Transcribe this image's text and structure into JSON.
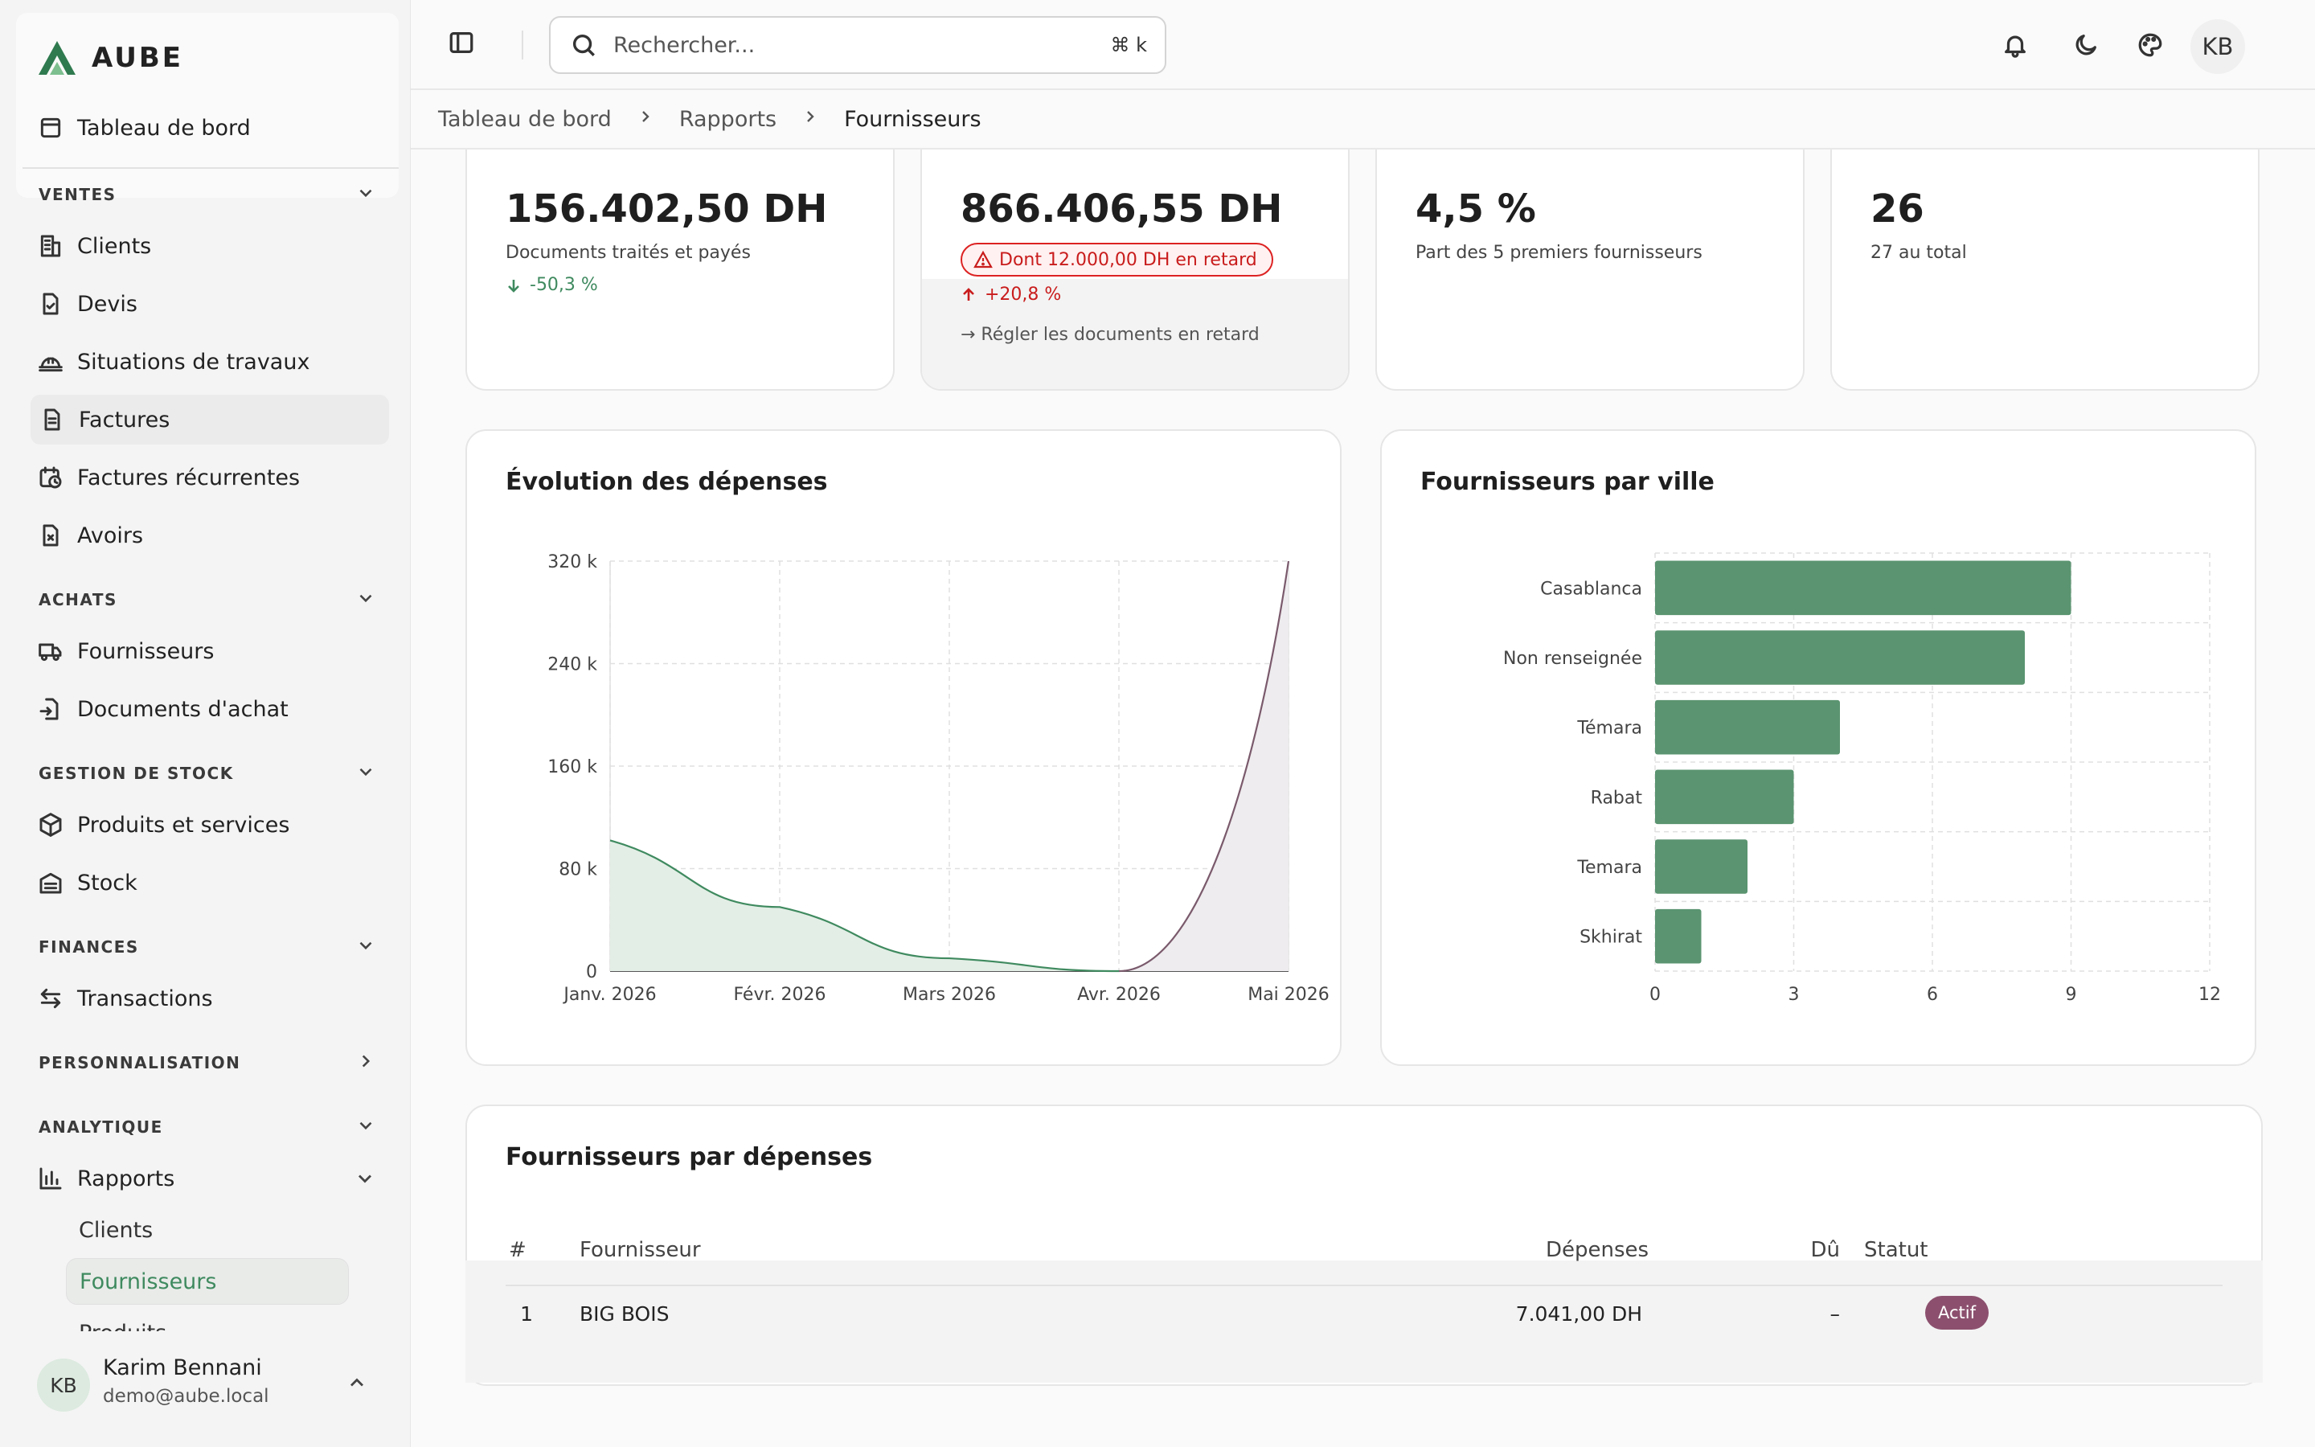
{
  "brand": {
    "name": "AUBE",
    "color": "#3f8a5f"
  },
  "sidebar": {
    "dashboard": "Tableau de bord",
    "sections": {
      "ventes": "VENTES",
      "achats": "ACHATS",
      "stock": "GESTION DE STOCK",
      "finances": "FINANCES",
      "perso": "PERSONNALISATION",
      "analytique": "ANALYTIQUE"
    },
    "items": {
      "clients": "Clients",
      "devis": "Devis",
      "situations": "Situations de travaux",
      "factures": "Factures",
      "factures_rec": "Factures récurrentes",
      "avoirs": "Avoirs",
      "fournisseurs": "Fournisseurs",
      "docs_achat": "Documents d'achat",
      "produits": "Produits et services",
      "stock": "Stock",
      "transactions": "Transactions",
      "rapports": "Rapports"
    },
    "rapports_sub": [
      "Clients",
      "Fournisseurs",
      "Produits"
    ],
    "user": {
      "initials": "KB",
      "name": "Karim Bennani",
      "email": "demo@aube.local"
    }
  },
  "topbar": {
    "search_placeholder": "Rechercher...",
    "search_shortcut": "⌘ k",
    "avatar_initials": "KB"
  },
  "breadcrumb": [
    "Tableau de bord",
    "Rapports",
    "Fournisseurs"
  ],
  "kpis": [
    {
      "value": "156.402,50 DH",
      "sub": "Documents traités et payés",
      "trend": "-50,3 %",
      "trend_dir": "down",
      "trend_color": "#3f8a5f"
    },
    {
      "value": "866.406,55 DH",
      "overdue": "Dont 12.000,00 DH en retard",
      "trend": "+20,8 %",
      "trend_dir": "up",
      "trend_color": "#c91c1c",
      "link": "→ Régler les documents en retard"
    },
    {
      "value": "4,5 %",
      "sub": "Part des 5 premiers fournisseurs"
    },
    {
      "value": "26",
      "sub": "27 au total"
    }
  ],
  "chart_data": [
    {
      "type": "area",
      "title": "Évolution des dépenses",
      "x": [
        "Janv. 2026",
        "Févr. 2026",
        "Mars 2026",
        "Avr. 2026",
        "Mai 2026"
      ],
      "y_ticks": [
        "0",
        "80 k",
        "160 k",
        "240 k",
        "320 k"
      ],
      "ylim": [
        0,
        320000
      ],
      "series": [
        {
          "values": [
            102000,
            50000,
            10000,
            0,
            null
          ],
          "color": "#3f8a5f",
          "fill": "#e3eee6"
        },
        {
          "values": [
            null,
            null,
            null,
            0,
            320000
          ],
          "color": "#7a5a6c",
          "fill": "#eeecee"
        }
      ],
      "grid": true
    },
    {
      "type": "bar",
      "orientation": "horizontal",
      "title": "Fournisseurs par ville",
      "categories": [
        "Casablanca",
        "Non renseignée",
        "Témara",
        "Rabat",
        "Temara",
        "Skhirat"
      ],
      "values": [
        9,
        8,
        4,
        3,
        2,
        1
      ],
      "x_ticks": [
        "0",
        "3",
        "6",
        "9",
        "12"
      ],
      "xlim": [
        0,
        12
      ],
      "color": "#5a9470",
      "grid": true
    }
  ],
  "table": {
    "title": "Fournisseurs par dépenses",
    "headers": {
      "num": "#",
      "name": "Fournisseur",
      "spend": "Dépenses",
      "due": "Dû",
      "status": "Statut"
    },
    "rows": [
      {
        "num": "1",
        "name": "BIG BOIS",
        "spend": "7.041,00 DH",
        "due": "–",
        "status": "Actif"
      }
    ]
  }
}
